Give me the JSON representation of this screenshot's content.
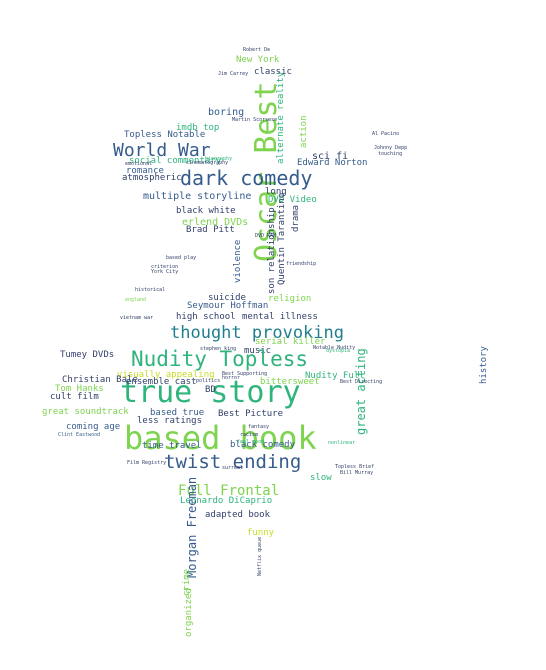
{
  "palette": {
    "navy": "#33416b",
    "blue": "#365c8d",
    "teal": "#1f7f8c",
    "green": "#2fb47c",
    "lime": "#7ed34f",
    "yellow": "#c8dc27"
  },
  "words": [
    {
      "t": "Robert De",
      "c": "navy"
    },
    {
      "t": "New York",
      "c": "lime"
    },
    {
      "t": "classic",
      "c": "navy"
    },
    {
      "t": "Oscar Best",
      "c": "lime"
    },
    {
      "t": "boring",
      "c": "blue"
    },
    {
      "t": "imdb top",
      "c": "green"
    },
    {
      "t": "Topless Notable",
      "c": "blue"
    },
    {
      "t": "World War",
      "c": "blue"
    },
    {
      "t": "dark comedy",
      "c": "blue"
    },
    {
      "t": "social commentary",
      "c": "green"
    },
    {
      "t": "romance",
      "c": "blue"
    },
    {
      "t": "atmospheric",
      "c": "navy"
    },
    {
      "t": "multiple storyline",
      "c": "blue"
    },
    {
      "t": "black white",
      "c": "navy"
    },
    {
      "t": "erlend DVDs",
      "c": "lime"
    },
    {
      "t": "Brad Pitt",
      "c": "navy"
    },
    {
      "t": "long",
      "c": "navy"
    },
    {
      "t": "DVD Video",
      "c": "green"
    },
    {
      "t": "sci fi",
      "c": "navy"
    },
    {
      "t": "Edward Norton",
      "c": "blue"
    },
    {
      "t": "alternate reality",
      "c": "green"
    },
    {
      "t": "action",
      "c": "lime"
    },
    {
      "t": "drama",
      "c": "navy"
    },
    {
      "t": "Quentin Tarantino",
      "c": "navy"
    },
    {
      "t": "son relationship",
      "c": "navy"
    },
    {
      "t": "violence",
      "c": "blue"
    },
    {
      "t": "religion",
      "c": "lime"
    },
    {
      "t": "high school",
      "c": "navy"
    },
    {
      "t": "mental illness",
      "c": "navy"
    },
    {
      "t": "thought provoking",
      "c": "teal"
    },
    {
      "t": "Tumey DVDs",
      "c": "navy"
    },
    {
      "t": "serial killer",
      "c": "lime"
    },
    {
      "t": "music",
      "c": "navy"
    },
    {
      "t": "Nudity Topless",
      "c": "green"
    },
    {
      "t": "Nudity Full",
      "c": "green"
    },
    {
      "t": "true story",
      "c": "green"
    },
    {
      "t": "visually appealing",
      "c": "yellow"
    },
    {
      "t": "Tom Hanks",
      "c": "lime"
    },
    {
      "t": "ensemble cast",
      "c": "navy"
    },
    {
      "t": "cult film",
      "c": "navy"
    },
    {
      "t": "bittersweet",
      "c": "lime"
    },
    {
      "t": "great soundtrack",
      "c": "lime"
    },
    {
      "t": "BD",
      "c": "navy"
    },
    {
      "t": "Best Picture",
      "c": "navy"
    },
    {
      "t": "based true",
      "c": "blue"
    },
    {
      "t": "less ratings",
      "c": "navy"
    },
    {
      "t": "coming age",
      "c": "blue"
    },
    {
      "t": "based book",
      "c": "lime"
    },
    {
      "t": "twist ending",
      "c": "blue"
    },
    {
      "t": "time travel",
      "c": "blue"
    },
    {
      "t": "black comedy",
      "c": "blue"
    },
    {
      "t": "Full Frontal",
      "c": "lime"
    },
    {
      "t": "slow",
      "c": "green"
    },
    {
      "t": "Leonardo DiCaprio",
      "c": "green"
    },
    {
      "t": "adapted book",
      "c": "navy"
    },
    {
      "t": "funny",
      "c": "yellow"
    },
    {
      "t": "Morgan Freeman",
      "c": "blue"
    },
    {
      "t": "crime",
      "c": "lime"
    },
    {
      "t": "organized",
      "c": "lime"
    },
    {
      "t": "history",
      "c": "blue"
    },
    {
      "t": "great acting",
      "c": "green"
    },
    {
      "t": "Seymour Hoffman",
      "c": "blue"
    },
    {
      "t": "Christian Bale",
      "c": "navy"
    },
    {
      "t": "suicide",
      "c": "navy"
    },
    {
      "t": "vietnam war",
      "c": "navy"
    },
    {
      "t": "england",
      "c": "lime"
    },
    {
      "t": "cinematography",
      "c": "navy"
    },
    {
      "t": "Martin Scorsese",
      "c": "navy"
    },
    {
      "t": "Al Pacino",
      "c": "navy"
    },
    {
      "t": "Johnny Depp",
      "c": "navy"
    },
    {
      "t": "touching",
      "c": "navy"
    },
    {
      "t": "friendship",
      "c": "navy"
    },
    {
      "t": "Notable Nudity",
      "c": "navy"
    },
    {
      "t": "Best Directing",
      "c": "navy"
    },
    {
      "t": "Film Registry",
      "c": "navy"
    },
    {
      "t": "Clint Eastwood",
      "c": "blue"
    },
    {
      "t": "Bill Murray",
      "c": "navy"
    },
    {
      "t": "Netflix queue",
      "c": "navy"
    },
    {
      "t": "fantasy",
      "c": "navy"
    },
    {
      "t": "racism",
      "c": "navy"
    },
    {
      "t": "feel good",
      "c": "green"
    },
    {
      "t": "historical",
      "c": "navy"
    },
    {
      "t": "York City",
      "c": "navy"
    },
    {
      "t": "biography",
      "c": "green"
    },
    {
      "t": "criterion",
      "c": "navy"
    },
    {
      "t": "Topless Brief",
      "c": "navy"
    },
    {
      "t": "stephen king",
      "c": "navy"
    },
    {
      "t": "based play",
      "c": "navy"
    },
    {
      "t": "politics",
      "c": "navy"
    },
    {
      "t": "surreal",
      "c": "navy"
    },
    {
      "t": "dystopia",
      "c": "green"
    },
    {
      "t": "nonlinear",
      "c": "green"
    },
    {
      "t": "emotional",
      "c": "navy"
    },
    {
      "t": "Best Supporting",
      "c": "navy"
    },
    {
      "t": "horror",
      "c": "navy"
    },
    {
      "t": "DVD RAM",
      "c": "navy"
    },
    {
      "t": "Jim Carrey",
      "c": "navy"
    }
  ]
}
